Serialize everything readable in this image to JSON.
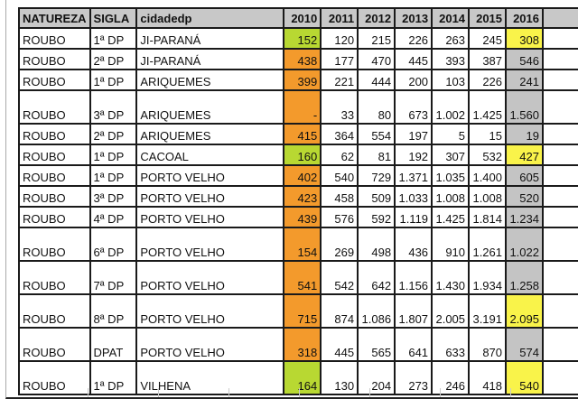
{
  "table": {
    "headers": [
      "NATUREZA",
      "SIGLA",
      "cidadedp",
      "2010",
      "2011",
      "2012",
      "2013",
      "2014",
      "2015",
      "2016",
      ""
    ],
    "rows": [
      {
        "natureza": "ROUBO",
        "sigla": "1ª DP",
        "cidade": "JI-PARANÁ",
        "v2010": "152",
        "v2011": "120",
        "v2012": "215",
        "v2013": "226",
        "v2014": "263",
        "v2015": "245",
        "v2016": "308",
        "c2010": "green",
        "c2016": "yellow",
        "tall": false
      },
      {
        "natureza": "ROUBO",
        "sigla": "2ª DP",
        "cidade": "JI-PARANÁ",
        "v2010": "438",
        "v2011": "177",
        "v2012": "470",
        "v2013": "445",
        "v2014": "393",
        "v2015": "387",
        "v2016": "546",
        "c2010": "orange",
        "c2016": "gray",
        "tall": false
      },
      {
        "natureza": "ROUBO",
        "sigla": "1ª DP",
        "cidade": "ARIQUEMES",
        "v2010": "399",
        "v2011": "221",
        "v2012": "444",
        "v2013": "200",
        "v2014": "103",
        "v2015": "226",
        "v2016": "241",
        "c2010": "orange",
        "c2016": "gray",
        "tall": false
      },
      {
        "natureza": "ROUBO",
        "sigla": "3ª DP",
        "cidade": "ARIQUEMES",
        "v2010": "-",
        "v2011": "33",
        "v2012": "80",
        "v2013": "673",
        "v2014": "1.002",
        "v2015": "1.425",
        "v2016": "1.560",
        "c2010": "orange",
        "c2016": "gray",
        "tall": true
      },
      {
        "natureza": "ROUBO",
        "sigla": "2ª DP",
        "cidade": "ARIQUEMES",
        "v2010": "415",
        "v2011": "364",
        "v2012": "554",
        "v2013": "197",
        "v2014": "5",
        "v2015": "15",
        "v2016": "19",
        "c2010": "orange",
        "c2016": "gray",
        "tall": false
      },
      {
        "natureza": "ROUBO",
        "sigla": "1ª DP",
        "cidade": "CACOAL",
        "v2010": "160",
        "v2011": "62",
        "v2012": "81",
        "v2013": "192",
        "v2014": "307",
        "v2015": "532",
        "v2016": "427",
        "c2010": "green",
        "c2016": "yellow",
        "tall": false
      },
      {
        "natureza": "ROUBO",
        "sigla": "1ª DP",
        "cidade": "PORTO VELHO",
        "v2010": "402",
        "v2011": "540",
        "v2012": "729",
        "v2013": "1.371",
        "v2014": "1.035",
        "v2015": "1.400",
        "v2016": "605",
        "c2010": "orange",
        "c2016": "gray",
        "tall": false
      },
      {
        "natureza": "ROUBO",
        "sigla": "3ª DP",
        "cidade": "PORTO VELHO",
        "v2010": "423",
        "v2011": "458",
        "v2012": "509",
        "v2013": "1.033",
        "v2014": "1.008",
        "v2015": "1.008",
        "v2016": "520",
        "c2010": "orange",
        "c2016": "gray",
        "tall": false
      },
      {
        "natureza": "ROUBO",
        "sigla": "4ª DP",
        "cidade": "PORTO VELHO",
        "v2010": "439",
        "v2011": "576",
        "v2012": "592",
        "v2013": "1.119",
        "v2014": "1.425",
        "v2015": "1.814",
        "v2016": "1.234",
        "c2010": "orange",
        "c2016": "gray",
        "tall": false
      },
      {
        "natureza": "ROUBO",
        "sigla": "6ª DP",
        "cidade": "PORTO VELHO",
        "v2010": "154",
        "v2011": "269",
        "v2012": "498",
        "v2013": "436",
        "v2014": "910",
        "v2015": "1.261",
        "v2016": "1.022",
        "c2010": "orange",
        "c2016": "gray",
        "tall": true
      },
      {
        "natureza": "ROUBO",
        "sigla": "7ª DP",
        "cidade": "PORTO VELHO",
        "v2010": "541",
        "v2011": "542",
        "v2012": "642",
        "v2013": "1.156",
        "v2014": "1.430",
        "v2015": "1.934",
        "v2016": "1.258",
        "c2010": "orange",
        "c2016": "gray",
        "tall": true
      },
      {
        "natureza": "ROUBO",
        "sigla": "8ª DP",
        "cidade": "PORTO VELHO",
        "v2010": "715",
        "v2011": "874",
        "v2012": "1.086",
        "v2013": "1.807",
        "v2014": "2.005",
        "v2015": "3.191",
        "v2016": "2.095",
        "c2010": "orange",
        "c2016": "yellow",
        "tall": true
      },
      {
        "natureza": "ROUBO",
        "sigla": "DPAT",
        "cidade": "PORTO VELHO",
        "v2010": "318",
        "v2011": "445",
        "v2012": "565",
        "v2013": "641",
        "v2014": "633",
        "v2015": "870",
        "v2016": "574",
        "c2010": "orange",
        "c2016": "gray",
        "tall": true
      },
      {
        "natureza": "ROUBO",
        "sigla": "1ª DP",
        "cidade": "VILHENA",
        "v2010": "164",
        "v2011": "130",
        "v2012": "204",
        "v2013": "273",
        "v2014": "246",
        "v2015": "418",
        "v2016": "540",
        "c2010": "green",
        "c2016": "yellow",
        "tall": true
      }
    ]
  },
  "colors": {
    "green": "#b8d832",
    "orange": "#f39a2c",
    "yellow": "#f9f34a",
    "gray": "#c4c4c4",
    "header": "#c8c8c8"
  }
}
